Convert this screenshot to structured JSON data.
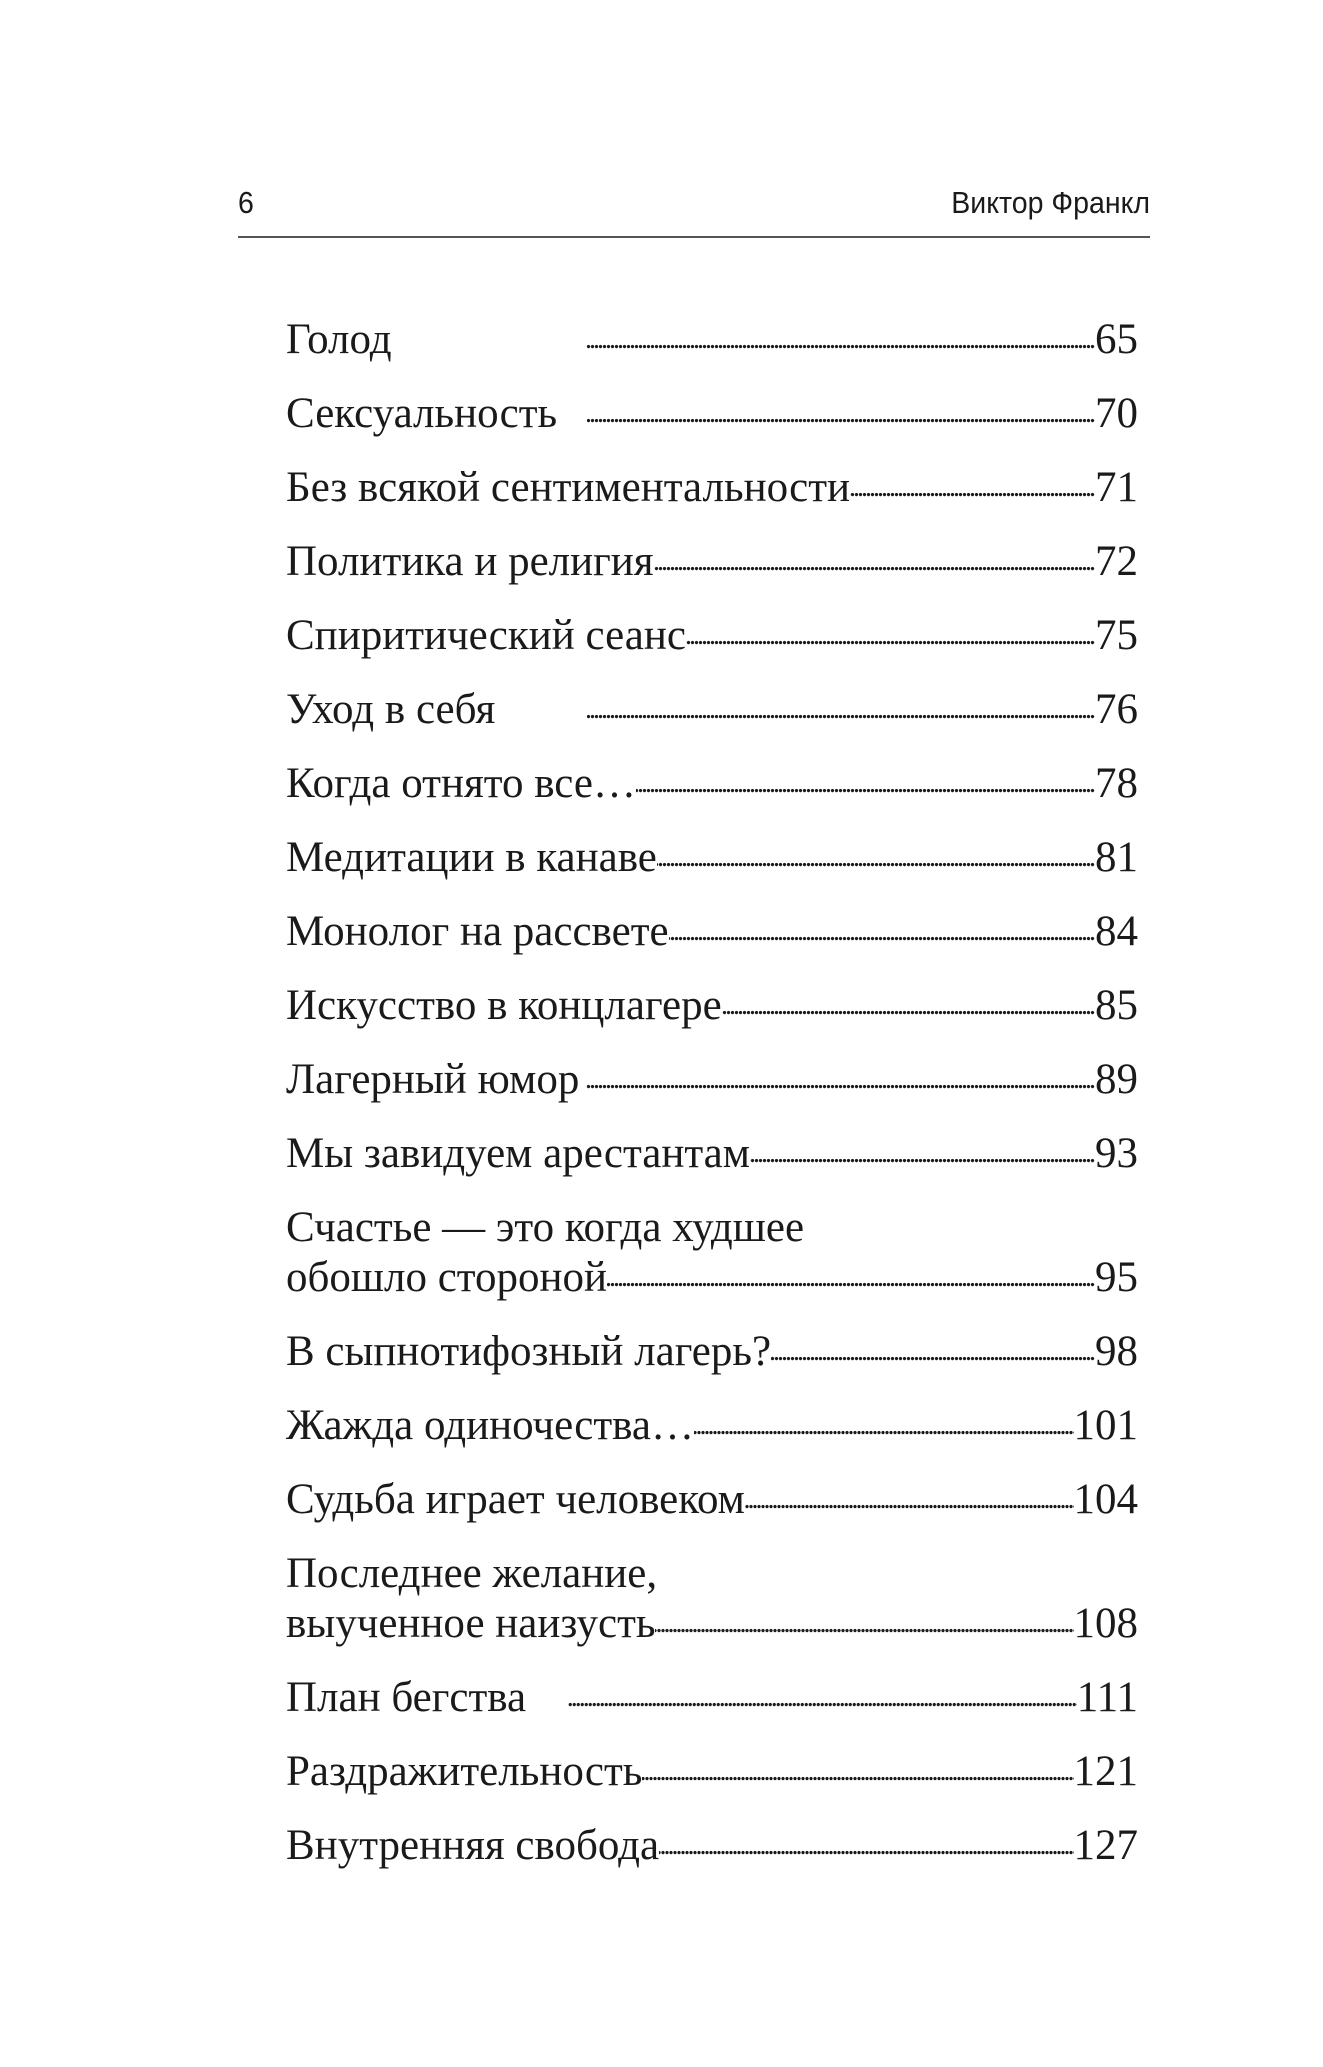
{
  "header": {
    "page_number": "6",
    "author": "Виктор Франкл"
  },
  "toc": [
    {
      "lines": [
        "Голод"
      ],
      "page": "65"
    },
    {
      "lines": [
        "Сексуальность"
      ],
      "page": "70"
    },
    {
      "lines": [
        "Без всякой сентиментальности"
      ],
      "page": "71"
    },
    {
      "lines": [
        "Политика и религия"
      ],
      "page": "72"
    },
    {
      "lines": [
        "Спиритический сеанс"
      ],
      "page": "75"
    },
    {
      "lines": [
        "Уход в себя"
      ],
      "page": "76"
    },
    {
      "lines": [
        "Когда отнято все…"
      ],
      "page": "78"
    },
    {
      "lines": [
        "Медитации в канаве"
      ],
      "page": "81"
    },
    {
      "lines": [
        "Монолог на рассвете"
      ],
      "page": "84"
    },
    {
      "lines": [
        "Искусство в концлагере"
      ],
      "page": "85"
    },
    {
      "lines": [
        "Лагерный юмор"
      ],
      "page": "89"
    },
    {
      "lines": [
        "Мы завидуем арестантам"
      ],
      "page": "93"
    },
    {
      "lines": [
        "Счастье — это когда худшее",
        "обошло стороной"
      ],
      "page": "95"
    },
    {
      "lines": [
        "В сыпнотифозный лагерь?"
      ],
      "page": "98"
    },
    {
      "lines": [
        "Жажда одиночества…"
      ],
      "page": "101"
    },
    {
      "lines": [
        "Судьба играет человеком"
      ],
      "page": "104"
    },
    {
      "lines": [
        "Последнее желание,",
        "выученное наизусть"
      ],
      "page": "108"
    },
    {
      "lines": [
        "План бегства"
      ],
      "page": "111"
    },
    {
      "lines": [
        "Раздражительность"
      ],
      "page": "121"
    },
    {
      "lines": [
        "Внутренняя свобода"
      ],
      "page": "127"
    }
  ]
}
